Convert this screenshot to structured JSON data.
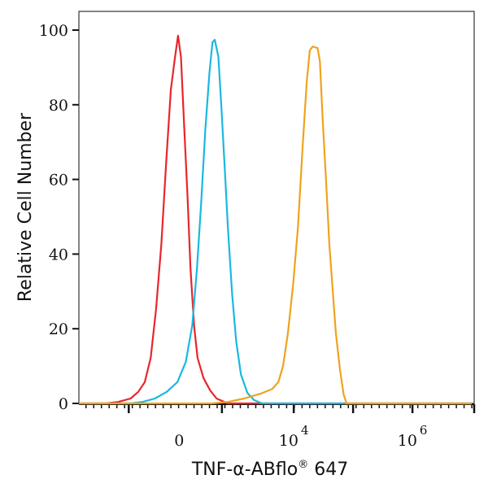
{
  "chart_data": {
    "type": "line",
    "title": "",
    "xlabel": "TNF-α-ABflo® 647",
    "xlabel_parts": {
      "main": "TNF-α-ABflo",
      "reg": "®",
      "tail": " 647"
    },
    "ylabel": "Relative Cell Number",
    "x_scale": "biexponential display (decades; 4 = 10^4)",
    "xlim": [
      0.38,
      7.04
    ],
    "ylim": [
      0,
      100
    ],
    "y_ticks": [
      0,
      20,
      40,
      60,
      80,
      100
    ],
    "y_tick_labels": [
      "0",
      "20",
      "40",
      "60",
      "80",
      "100"
    ],
    "x_tick_labels": [
      {
        "pos": 2.07,
        "base": "0",
        "exp": ""
      },
      {
        "pos": 4,
        "base": "10",
        "exp": "4"
      },
      {
        "pos": 6,
        "base": "10",
        "exp": "6"
      }
    ],
    "x_major_ticks": [
      1.22,
      2.79,
      4,
      5,
      6,
      7.04
    ],
    "grid": false,
    "series": [
      {
        "name": "red",
        "color": "#e8262b",
        "x": [
          0.42,
          0.84,
          1.04,
          1.25,
          1.38,
          1.49,
          1.59,
          1.68,
          1.77,
          1.85,
          1.93,
          2.0,
          2.05,
          2.1,
          2.15,
          2.21,
          2.26,
          2.32,
          2.38,
          2.48,
          2.59,
          2.7,
          2.89,
          7.0
        ],
        "y": [
          0,
          0,
          0.4,
          1.3,
          3.1,
          5.7,
          12.2,
          25.3,
          42.7,
          64.5,
          84.1,
          92.8,
          98.5,
          92.8,
          75.4,
          55.8,
          36.2,
          20.9,
          12.2,
          6.8,
          3.5,
          1.3,
          0,
          0
        ]
      },
      {
        "name": "cyan",
        "color": "#1ab8e0",
        "x": [
          0.38,
          1.25,
          1.45,
          1.66,
          1.86,
          2.04,
          2.18,
          2.29,
          2.37,
          2.44,
          2.51,
          2.58,
          2.63,
          2.67,
          2.73,
          2.78,
          2.84,
          2.89,
          2.96,
          3.03,
          3.11,
          3.22,
          3.33,
          3.47,
          7.0
        ],
        "y": [
          0,
          0,
          0.4,
          1.3,
          3.1,
          5.7,
          11.1,
          20.9,
          36.2,
          53.6,
          73.2,
          88.5,
          96.7,
          97.4,
          92.8,
          79.7,
          62.3,
          47.1,
          29.6,
          16.6,
          7.8,
          2.8,
          0.9,
          0,
          0
        ]
      },
      {
        "name": "orange",
        "color": "#f0a21e",
        "x": [
          0.38,
          2.62,
          2.89,
          3.16,
          3.44,
          3.64,
          3.74,
          3.82,
          3.9,
          3.99,
          4.07,
          4.15,
          4.22,
          4.27,
          4.32,
          4.4,
          4.44,
          4.49,
          4.55,
          4.6,
          4.66,
          4.71,
          4.78,
          4.84,
          4.89,
          7.0
        ],
        "y": [
          0,
          0,
          0.4,
          1.3,
          2.6,
          3.9,
          5.7,
          10.0,
          18.7,
          31.8,
          47.1,
          68.8,
          86.3,
          94.6,
          95.6,
          95.2,
          91.7,
          75.4,
          58.0,
          42.7,
          29.6,
          18.7,
          8.9,
          2.4,
          0,
          0
        ]
      }
    ]
  }
}
